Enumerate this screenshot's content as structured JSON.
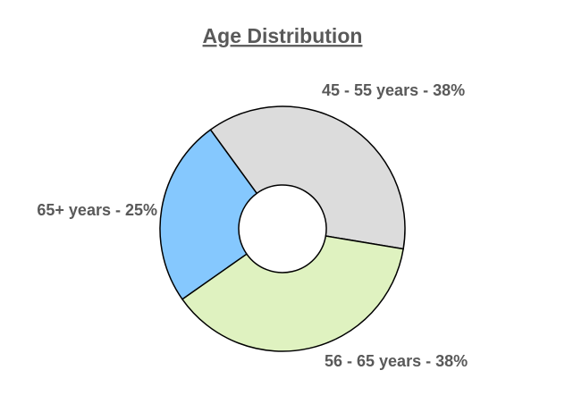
{
  "chart_data": {
    "type": "donut",
    "title": "Age Distribution",
    "categories": [
      "45 - 55 years - 38%",
      "56 - 65 years - 38%",
      "65+ years - 25%"
    ],
    "values": [
      38,
      38,
      25
    ],
    "colors": [
      "#dcdcdc",
      "#dff2c0",
      "#85c8fe"
    ]
  }
}
